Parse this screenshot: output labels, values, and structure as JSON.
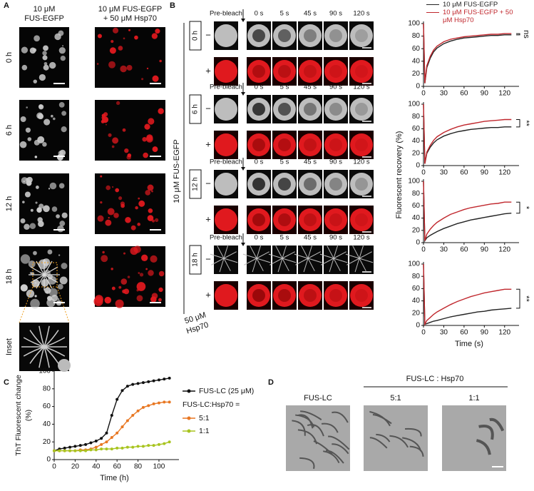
{
  "panel_labels": [
    "A",
    "B",
    "C",
    "D"
  ],
  "panel_a": {
    "headers": [
      [
        "10 μM",
        "FUS-EGFP"
      ],
      [
        "10 μM FUS-EGFP",
        "+ 50 μM Hsp70"
      ]
    ],
    "rows": [
      "0 h",
      "6 h",
      "12 h",
      "18 h"
    ],
    "inset": "Inset"
  },
  "panel_b": {
    "side_label": "10 μM FUS-EGFP",
    "rows": [
      "0 h",
      "6 h",
      "12 h",
      "18 h"
    ],
    "times": [
      "Pre-bleach",
      "0 s",
      "5 s",
      "45 s",
      "90 s",
      "120 s"
    ],
    "signs": [
      "−",
      "+"
    ],
    "hsp": [
      "50 μM",
      "Hsp70"
    ]
  },
  "panel_d": {
    "title": "FUS-LC : Hsp70",
    "columns": [
      "FUS-LC",
      "5:1",
      "1:1"
    ]
  },
  "chart_data": [
    {
      "type": "line",
      "ylabel": "Fluorescent recovery (%)",
      "annotation": "ns",
      "x": [
        0,
        2,
        5,
        10,
        15,
        20,
        30,
        40,
        50,
        60,
        70,
        80,
        90,
        100,
        110,
        120,
        130
      ],
      "series": [
        {
          "name": "10 μM FUS-EGFP",
          "color": "#222222",
          "values": [
            100,
            5,
            30,
            45,
            55,
            61,
            68,
            72,
            75,
            77,
            78,
            79,
            80,
            81,
            81,
            82,
            82
          ]
        },
        {
          "name": "10 μM FUS-EGFP + 50 μM Hsp70",
          "color": "#c0272d",
          "values": [
            100,
            5,
            33,
            48,
            58,
            64,
            71,
            75,
            77,
            79,
            80,
            81,
            82,
            83,
            83,
            84,
            84
          ]
        }
      ],
      "xlim": [
        0,
        135
      ],
      "xticks": [
        0,
        30,
        60,
        90,
        120
      ],
      "ylim": [
        0,
        100
      ],
      "yticks": [
        0,
        20,
        40,
        60,
        80,
        100
      ]
    },
    {
      "type": "line",
      "annotation": "**",
      "x": [
        0,
        2,
        5,
        10,
        15,
        20,
        30,
        40,
        50,
        60,
        70,
        80,
        90,
        100,
        110,
        120,
        130
      ],
      "series": [
        {
          "color": "#222222",
          "values": [
            100,
            3,
            20,
            30,
            37,
            42,
            48,
            52,
            55,
            57,
            59,
            60,
            61,
            62,
            62,
            63,
            63
          ]
        },
        {
          "color": "#c0272d",
          "values": [
            100,
            3,
            22,
            33,
            41,
            47,
            54,
            59,
            63,
            66,
            68,
            70,
            72,
            73,
            74,
            75,
            75
          ]
        }
      ],
      "xlim": [
        0,
        135
      ],
      "xticks": [
        0,
        30,
        60,
        90,
        120
      ],
      "ylim": [
        0,
        100
      ],
      "yticks": [
        0,
        20,
        40,
        60,
        80,
        100
      ]
    },
    {
      "type": "line",
      "annotation": "*",
      "x": [
        0,
        2,
        5,
        10,
        15,
        20,
        30,
        40,
        50,
        60,
        70,
        80,
        90,
        100,
        110,
        120,
        130
      ],
      "series": [
        {
          "color": "#222222",
          "values": [
            100,
            3,
            8,
            12,
            15,
            18,
            23,
            27,
            31,
            34,
            37,
            39,
            41,
            43,
            45,
            47,
            48
          ]
        },
        {
          "color": "#c0272d",
          "values": [
            100,
            3,
            14,
            22,
            28,
            33,
            40,
            46,
            50,
            54,
            57,
            59,
            61,
            63,
            64,
            66,
            66
          ]
        }
      ],
      "xlim": [
        0,
        135
      ],
      "xticks": [
        0,
        30,
        60,
        90,
        120
      ],
      "ylim": [
        0,
        100
      ],
      "yticks": [
        0,
        20,
        40,
        60,
        80,
        100
      ]
    },
    {
      "type": "line",
      "annotation": "**",
      "xlabel": "Time (s)",
      "x": [
        0,
        2,
        5,
        10,
        15,
        20,
        30,
        40,
        50,
        60,
        70,
        80,
        90,
        100,
        110,
        120,
        130
      ],
      "series": [
        {
          "color": "#222222",
          "values": [
            100,
            2,
            3,
            5,
            7,
            8,
            11,
            14,
            16,
            18,
            20,
            22,
            23,
            25,
            26,
            27,
            28
          ]
        },
        {
          "color": "#c0272d",
          "values": [
            100,
            2,
            8,
            13,
            18,
            22,
            28,
            34,
            39,
            43,
            47,
            50,
            53,
            55,
            57,
            59,
            59
          ]
        }
      ],
      "xlim": [
        0,
        135
      ],
      "xticks": [
        0,
        30,
        60,
        90,
        120
      ],
      "ylim": [
        0,
        100
      ],
      "yticks": [
        0,
        20,
        40,
        60,
        80,
        100
      ]
    },
    {
      "type": "line",
      "ylabel": [
        "ThT Fluorescent change",
        "(%)"
      ],
      "xlabel": "Time (h)",
      "legend_title": "FUS-LC:Hsp70 =",
      "x": [
        0,
        5,
        10,
        15,
        20,
        25,
        30,
        35,
        40,
        45,
        50,
        55,
        60,
        65,
        70,
        75,
        80,
        85,
        90,
        95,
        100,
        105,
        110
      ],
      "series": [
        {
          "name": "FUS-LC (25 μM)",
          "color": "#111111",
          "values": [
            10,
            12,
            13,
            14,
            15,
            16,
            17,
            19,
            21,
            24,
            30,
            50,
            68,
            78,
            83,
            85,
            86,
            87,
            88,
            89,
            90,
            91,
            92
          ]
        },
        {
          "name": "5:1",
          "color": "#e87722",
          "values": [
            10,
            10,
            10,
            10,
            10,
            11,
            11,
            12,
            14,
            17,
            20,
            25,
            30,
            37,
            44,
            50,
            55,
            59,
            61,
            63,
            64,
            65,
            65
          ]
        },
        {
          "name": "1:1",
          "color": "#a8c41f",
          "values": [
            10,
            10,
            10,
            10,
            10,
            10,
            10,
            11,
            11,
            12,
            12,
            12,
            13,
            13,
            14,
            14,
            15,
            15,
            16,
            16,
            17,
            18,
            20
          ]
        }
      ],
      "xlim": [
        0,
        115
      ],
      "xticks": [
        0,
        20,
        40,
        60,
        80,
        100
      ],
      "ylim": [
        0,
        100
      ],
      "yticks": [
        0,
        20,
        40,
        60,
        80,
        100
      ]
    }
  ]
}
